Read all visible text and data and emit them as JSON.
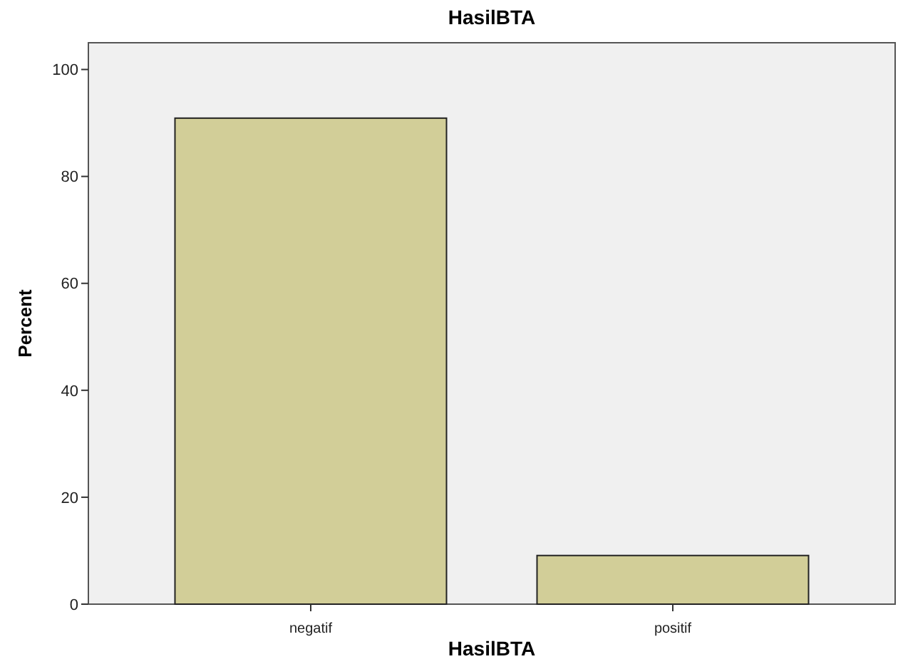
{
  "chart_data": {
    "type": "bar",
    "title": "HasilBTA",
    "xlabel": "HasilBTA",
    "ylabel": "Percent",
    "categories": [
      "negatif",
      "positif"
    ],
    "values": [
      90.9,
      9.1
    ],
    "color": "#d2ce98",
    "ylim": [
      0,
      105
    ],
    "yticks": [
      0,
      20,
      40,
      60,
      80,
      100
    ],
    "grid": false
  }
}
